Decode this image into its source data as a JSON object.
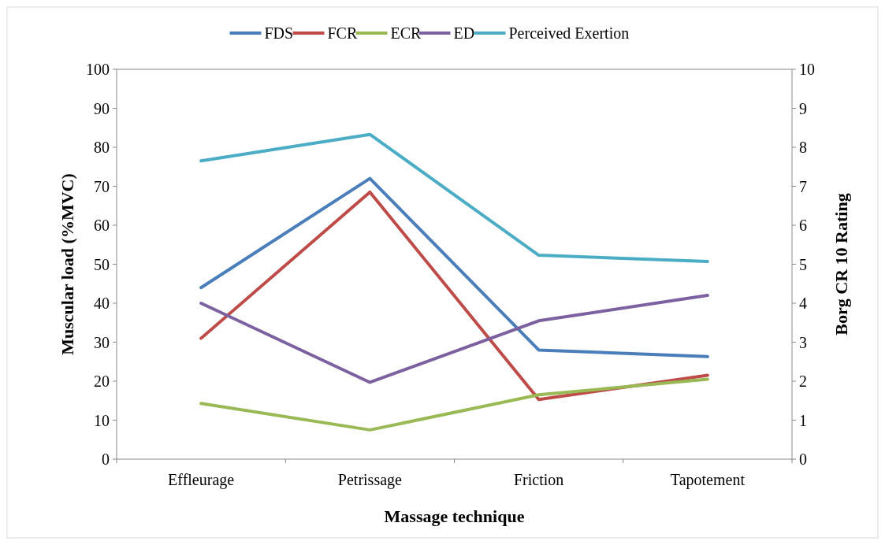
{
  "chart_data": {
    "type": "line",
    "xlabel": "Massage technique",
    "ylabel": "Muscular load (%MVC)",
    "y2label": "Borg CR 10 Rating",
    "categories": [
      "Effleurage",
      "Petrissage",
      "Friction",
      "Tapotement"
    ],
    "series": [
      {
        "name": "FDS",
        "color": "#4a7ebb",
        "values": [
          44,
          72,
          28,
          26.3
        ]
      },
      {
        "name": "FCR",
        "color": "#be4b48",
        "values": [
          31,
          68.5,
          15.3,
          21.5
        ]
      },
      {
        "name": "ECR",
        "color": "#98b954",
        "values": [
          14.3,
          7.5,
          16.5,
          20.5
        ]
      },
      {
        "name": "ED",
        "color": "#7d60a0",
        "values": [
          40,
          19.7,
          35.5,
          42
        ]
      },
      {
        "name": "Perceived Exertion",
        "color": "#4bacc6",
        "axis": "y2",
        "values": [
          7.65,
          8.33,
          5.23,
          5.07
        ]
      }
    ],
    "ylim": [
      0,
      100
    ],
    "yticks": [
      0,
      10,
      20,
      30,
      40,
      50,
      60,
      70,
      80,
      90,
      100
    ],
    "y2lim": [
      0,
      10
    ],
    "y2ticks": [
      0,
      1,
      2,
      3,
      4,
      5,
      6,
      7,
      8,
      9,
      10
    ],
    "grid": false,
    "legend": "top",
    "marker": "none",
    "line_style": "solid"
  }
}
